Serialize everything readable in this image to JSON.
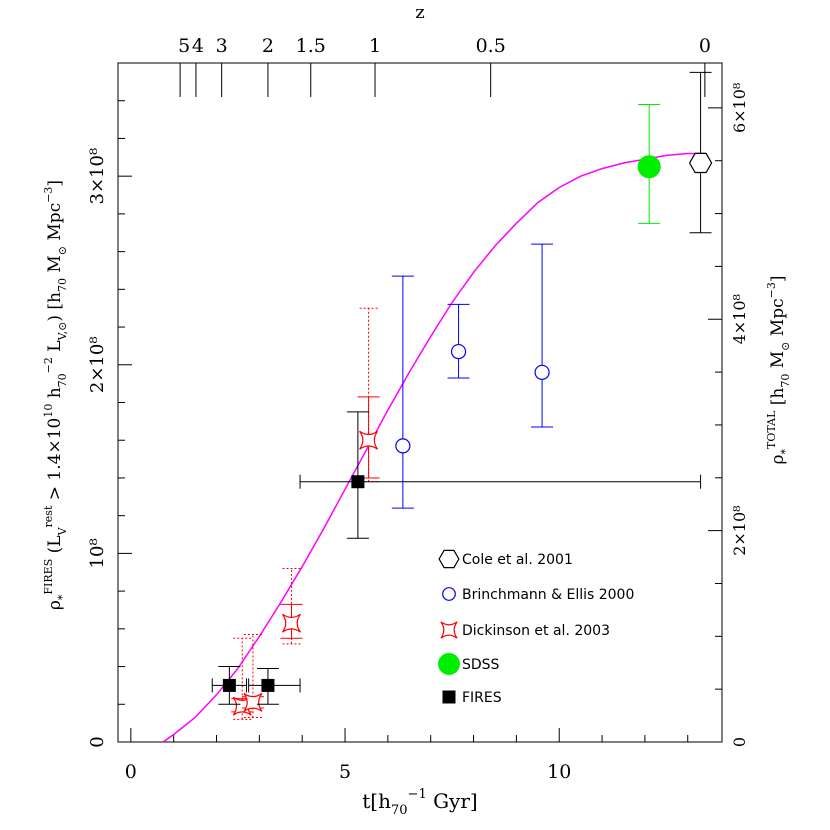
{
  "chart_data": {
    "type": "scatter",
    "xlabel": "t[h₇₀⁻¹ Gyr]",
    "ylabel_left": "ρ*FIRES (LVrest > 1.4×10¹⁰ h₇₀⁻² LV,⊙) [h₇₀ M⊙ Mpc⁻³]",
    "ylabel_right": "ρ*TOTAL [h₇₀ M⊙ Mpc⁻³]",
    "toplabel": "z",
    "xlim": [
      -0.3,
      13.8
    ],
    "ylim": [
      0,
      3.6
    ],
    "x_ticks": [
      {
        "v": 0,
        "label": "0"
      },
      {
        "v": 5,
        "label": "5"
      },
      {
        "v": 10,
        "label": "10"
      }
    ],
    "y_ticks_left": [
      {
        "v": 0,
        "label": "0"
      },
      {
        "v": 1,
        "label": "10⁸"
      },
      {
        "v": 2,
        "label": "2×10⁸"
      },
      {
        "v": 3,
        "label": "3×10⁸"
      }
    ],
    "y_ticks_right": [
      {
        "v": 0,
        "label": "0"
      },
      {
        "v": 1.1207,
        "label": "2×10⁸"
      },
      {
        "v": 2.2414,
        "label": "4×10⁸"
      },
      {
        "v": 3.3621,
        "label": "6×10⁸"
      }
    ],
    "top_ticks": [
      {
        "t": 1.15,
        "label": "5"
      },
      {
        "t": 1.52,
        "label": "4"
      },
      {
        "t": 2.12,
        "label": "3"
      },
      {
        "t": 3.2,
        "label": "2"
      },
      {
        "t": 4.2,
        "label": "1.5"
      },
      {
        "t": 5.7,
        "label": "1"
      },
      {
        "t": 8.4,
        "label": "0.5"
      },
      {
        "t": 13.4,
        "label": "0"
      }
    ],
    "series": [
      {
        "name": "Cole et al. 2001",
        "marker": "hexagon",
        "color": "#000000",
        "points": [
          {
            "x": 13.3,
            "y": 3.07,
            "ylo": 2.7,
            "yhi": 3.55
          }
        ]
      },
      {
        "name": "Brinchmann & Ellis 2000",
        "marker": "open-circle",
        "color": "#0000ff",
        "points": [
          {
            "x": 6.35,
            "y": 1.57,
            "ylo": 1.24,
            "yhi": 2.47
          },
          {
            "x": 7.65,
            "y": 2.07,
            "ylo": 1.93,
            "yhi": 2.32
          },
          {
            "x": 9.6,
            "y": 1.96,
            "ylo": 1.67,
            "yhi": 2.64
          }
        ]
      },
      {
        "name": "Dickinson et al. 2003",
        "marker": "star",
        "color": "#ff0000",
        "points": [
          {
            "x": 2.6,
            "y": 0.19,
            "ylo": 0.16,
            "yhi": 0.23,
            "ylo2": 0.12,
            "yhi2": 0.55
          },
          {
            "x": 2.85,
            "y": 0.21,
            "ylo": 0.18,
            "yhi": 0.24,
            "ylo2": 0.13,
            "yhi2": 0.57
          },
          {
            "x": 3.75,
            "y": 0.63,
            "ylo": 0.55,
            "yhi": 0.73,
            "ylo2": 0.52,
            "yhi2": 0.92
          },
          {
            "x": 5.55,
            "y": 1.6,
            "ylo": 1.4,
            "yhi": 1.83,
            "ylo2": 1.38,
            "yhi2": 2.3
          }
        ]
      },
      {
        "name": "SDSS",
        "marker": "filled-circle",
        "color": "#00ee00",
        "points": [
          {
            "x": 12.1,
            "y": 3.05,
            "ylo": 2.75,
            "yhi": 3.38
          }
        ]
      },
      {
        "name": "FIRES",
        "marker": "filled-square",
        "color": "#000000",
        "points": [
          {
            "x": 2.3,
            "y": 0.3,
            "ylo": 0.2,
            "yhi": 0.4,
            "xlo": 1.9,
            "xhi": 2.7
          },
          {
            "x": 3.2,
            "y": 0.3,
            "ylo": 0.2,
            "yhi": 0.39,
            "xlo": 2.75,
            "xhi": 3.95
          },
          {
            "x": 5.3,
            "y": 1.38,
            "ylo": 1.08,
            "yhi": 1.75,
            "xlo": 3.95,
            "xhi": 13.3
          }
        ]
      }
    ],
    "curve": {
      "color": "#ff00ff",
      "points": [
        [
          0.75,
          0
        ],
        [
          1.0,
          0.04
        ],
        [
          1.5,
          0.13
        ],
        [
          2.0,
          0.25
        ],
        [
          2.5,
          0.39
        ],
        [
          3.0,
          0.56
        ],
        [
          3.5,
          0.74
        ],
        [
          4.0,
          0.93
        ],
        [
          4.5,
          1.13
        ],
        [
          5.0,
          1.34
        ],
        [
          5.5,
          1.55
        ],
        [
          6.0,
          1.76
        ],
        [
          6.5,
          1.96
        ],
        [
          7.0,
          2.15
        ],
        [
          7.5,
          2.33
        ],
        [
          8.0,
          2.49
        ],
        [
          8.5,
          2.63
        ],
        [
          9.0,
          2.75
        ],
        [
          9.5,
          2.86
        ],
        [
          10.0,
          2.94
        ],
        [
          10.5,
          3.0
        ],
        [
          11.0,
          3.04
        ],
        [
          11.5,
          3.07
        ],
        [
          12.0,
          3.09
        ],
        [
          12.5,
          3.11
        ],
        [
          13.0,
          3.12
        ],
        [
          13.4,
          3.12
        ]
      ]
    }
  }
}
